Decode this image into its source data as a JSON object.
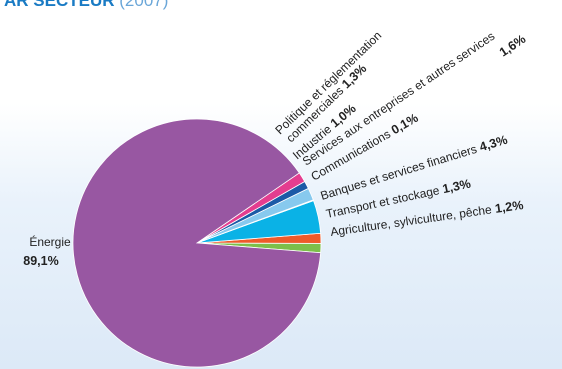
{
  "header": {
    "title": "AR SECTEUR",
    "year": "(2007)"
  },
  "chart_data": {
    "type": "pie",
    "title": "AR SECTEUR (2007)",
    "slices": [
      {
        "label": "Énergie",
        "value": 89.1,
        "value_label": "89,1%",
        "color": "#9857a2"
      },
      {
        "label": "Politique et réglementation commerciales",
        "label_lines": [
          "Politique et réglementation",
          "commerciales"
        ],
        "value": 1.3,
        "value_label": "1,3%",
        "color": "#e43d8f"
      },
      {
        "label": "Industrie",
        "value": 1.0,
        "value_label": "1,0%",
        "color": "#1b5aa6"
      },
      {
        "label": "Services aux entreprises et autres services",
        "value": 1.6,
        "value_label": "1,6%",
        "color": "#87c9ee"
      },
      {
        "label": "Communications",
        "value": 0.1,
        "value_label": "0,1%",
        "color": "#f4a3c2"
      },
      {
        "label": "Banques et services financiers",
        "value": 4.3,
        "value_label": "4,3%",
        "color": "#0ab2e6"
      },
      {
        "label": "Transport et stockage",
        "value": 1.3,
        "value_label": "1,3%",
        "color": "#ee5a2a"
      },
      {
        "label": "Agriculture, sylviculture, pêche",
        "value": 1.2,
        "value_label": "1,2%",
        "color": "#7cbf4a"
      }
    ]
  }
}
